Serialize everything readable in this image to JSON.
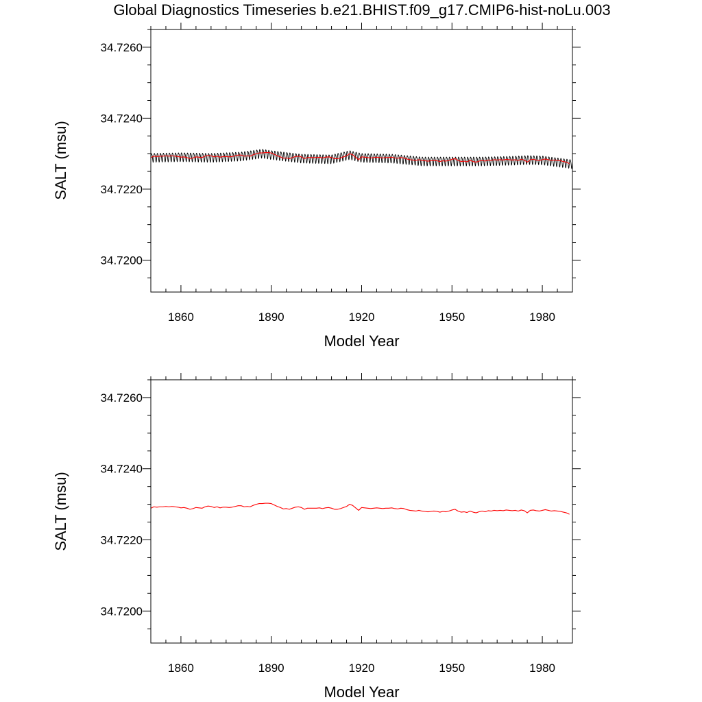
{
  "title": "Global Diagnostics Timeseries b.e21.BHIST.f09_g17.CMIP6-hist-noLu.003",
  "colors": {
    "monthly": "#000000",
    "annual": "#ff0000",
    "axes": "#000000"
  },
  "chart_data": [
    {
      "type": "line",
      "xlabel": "Model Year",
      "ylabel": "SALT (msu)",
      "xlim": [
        1850,
        1990
      ],
      "ylim": [
        34.7191,
        34.7265
      ],
      "xticks": [
        1860,
        1890,
        1920,
        1950,
        1980
      ],
      "xtick_labels": [
        "1860",
        "1890",
        "1920",
        "1950",
        "1980"
      ],
      "yticks": [
        34.72,
        34.722,
        34.724,
        34.726
      ],
      "ytick_labels": [
        "34.7200",
        "34.7220",
        "34.7240",
        "34.7260"
      ],
      "grid": false,
      "series": [
        {
          "key": "monthly",
          "kind": "monthly",
          "color": "#000000",
          "x_start": 1850,
          "x_end": 1990,
          "seasonal_amplitude": 0.00012,
          "anchors": {
            "x": [
              1850,
              1860,
              1870,
              1880,
              1887,
              1890,
              1900,
              1910,
              1916,
              1920,
              1930,
              1940,
              1950,
              1960,
              1970,
              1975,
              1980,
              1990
            ],
            "y": [
              34.7229,
              34.72292,
              34.7229,
              34.72294,
              34.72302,
              34.72298,
              34.72288,
              34.72286,
              34.72298,
              34.7229,
              34.72288,
              34.7228,
              34.7228,
              34.7228,
              34.72282,
              34.72284,
              34.72283,
              34.72272
            ]
          }
        },
        {
          "key": "annual",
          "kind": "annual",
          "color": "#ff0000",
          "x": [
            1850,
            1851,
            1852,
            1853,
            1854,
            1855,
            1856,
            1857,
            1858,
            1859,
            1860,
            1861,
            1862,
            1863,
            1864,
            1865,
            1866,
            1867,
            1868,
            1869,
            1870,
            1871,
            1872,
            1873,
            1874,
            1875,
            1876,
            1877,
            1878,
            1879,
            1880,
            1881,
            1882,
            1883,
            1884,
            1885,
            1886,
            1887,
            1888,
            1889,
            1890,
            1891,
            1892,
            1893,
            1894,
            1895,
            1896,
            1897,
            1898,
            1899,
            1900,
            1901,
            1902,
            1903,
            1904,
            1905,
            1906,
            1907,
            1908,
            1909,
            1910,
            1911,
            1912,
            1913,
            1914,
            1915,
            1916,
            1917,
            1918,
            1919,
            1920,
            1921,
            1922,
            1923,
            1924,
            1925,
            1926,
            1927,
            1928,
            1929,
            1930,
            1931,
            1932,
            1933,
            1934,
            1935,
            1936,
            1937,
            1938,
            1939,
            1940,
            1941,
            1942,
            1943,
            1944,
            1945,
            1946,
            1947,
            1948,
            1949,
            1950,
            1951,
            1952,
            1953,
            1954,
            1955,
            1956,
            1957,
            1958,
            1959,
            1960,
            1961,
            1962,
            1963,
            1964,
            1965,
            1966,
            1967,
            1968,
            1969,
            1970,
            1971,
            1972,
            1973,
            1974,
            1975,
            1976,
            1977,
            1978,
            1979,
            1980,
            1981,
            1982,
            1983,
            1984,
            1985,
            1986,
            1987,
            1988,
            1989
          ],
          "y": [
            34.72289,
            34.72293,
            34.72292,
            34.72293,
            34.72293,
            34.72294,
            34.72293,
            34.72294,
            34.72293,
            34.72292,
            34.7229,
            34.72291,
            34.72289,
            34.72286,
            34.72288,
            34.72291,
            34.7229,
            34.72289,
            34.72293,
            34.72295,
            34.72294,
            34.72291,
            34.72293,
            34.7229,
            34.72292,
            34.72292,
            34.72291,
            34.72292,
            34.72294,
            34.72296,
            34.72296,
            34.72293,
            34.72294,
            34.72293,
            34.72297,
            34.723,
            34.72302,
            34.72302,
            34.72303,
            34.72303,
            34.72302,
            34.72298,
            34.72294,
            34.72291,
            34.72287,
            34.72288,
            34.72286,
            34.72289,
            34.72292,
            34.72293,
            34.72291,
            34.72286,
            34.72289,
            34.72289,
            34.72289,
            34.72289,
            34.7229,
            34.72288,
            34.7229,
            34.72291,
            34.72289,
            34.72286,
            34.72286,
            34.72288,
            34.72291,
            34.72294,
            34.723,
            34.72297,
            34.7229,
            34.72283,
            34.72291,
            34.7229,
            34.72289,
            34.72288,
            34.72289,
            34.7229,
            34.72289,
            34.72288,
            34.72289,
            34.72289,
            34.7229,
            34.72288,
            34.72287,
            34.72289,
            34.72288,
            34.72285,
            34.72283,
            34.72282,
            34.72281,
            34.72283,
            34.72281,
            34.7228,
            34.72279,
            34.7228,
            34.72281,
            34.7228,
            34.72278,
            34.7228,
            34.72279,
            34.72281,
            34.72284,
            34.72286,
            34.72281,
            34.72278,
            34.72279,
            34.72277,
            34.72281,
            34.72278,
            34.72276,
            34.72279,
            34.72281,
            34.72279,
            34.72282,
            34.72281,
            34.72283,
            34.72282,
            34.72283,
            34.72282,
            34.72284,
            34.72283,
            34.72282,
            34.72283,
            34.72281,
            34.72284,
            34.72282,
            34.72276,
            34.72283,
            34.72284,
            34.72282,
            34.72281,
            34.72283,
            34.72285,
            34.72283,
            34.72281,
            34.72282,
            34.72281,
            34.7228,
            34.72278,
            34.72276,
            34.72272
          ]
        }
      ]
    },
    {
      "type": "line",
      "xlabel": "Model Year",
      "ylabel": "SALT (msu)",
      "xlim": [
        1850,
        1990
      ],
      "ylim": [
        34.7191,
        34.7265
      ],
      "xticks": [
        1860,
        1890,
        1920,
        1950,
        1980
      ],
      "xtick_labels": [
        "1860",
        "1890",
        "1920",
        "1950",
        "1980"
      ],
      "yticks": [
        34.72,
        34.722,
        34.724,
        34.726
      ],
      "ytick_labels": [
        "34.7200",
        "34.7220",
        "34.7240",
        "34.7260"
      ],
      "grid": false,
      "series": [
        {
          "key": "annual",
          "kind": "annual",
          "color": "#ff0000",
          "x": [
            1850,
            1851,
            1852,
            1853,
            1854,
            1855,
            1856,
            1857,
            1858,
            1859,
            1860,
            1861,
            1862,
            1863,
            1864,
            1865,
            1866,
            1867,
            1868,
            1869,
            1870,
            1871,
            1872,
            1873,
            1874,
            1875,
            1876,
            1877,
            1878,
            1879,
            1880,
            1881,
            1882,
            1883,
            1884,
            1885,
            1886,
            1887,
            1888,
            1889,
            1890,
            1891,
            1892,
            1893,
            1894,
            1895,
            1896,
            1897,
            1898,
            1899,
            1900,
            1901,
            1902,
            1903,
            1904,
            1905,
            1906,
            1907,
            1908,
            1909,
            1910,
            1911,
            1912,
            1913,
            1914,
            1915,
            1916,
            1917,
            1918,
            1919,
            1920,
            1921,
            1922,
            1923,
            1924,
            1925,
            1926,
            1927,
            1928,
            1929,
            1930,
            1931,
            1932,
            1933,
            1934,
            1935,
            1936,
            1937,
            1938,
            1939,
            1940,
            1941,
            1942,
            1943,
            1944,
            1945,
            1946,
            1947,
            1948,
            1949,
            1950,
            1951,
            1952,
            1953,
            1954,
            1955,
            1956,
            1957,
            1958,
            1959,
            1960,
            1961,
            1962,
            1963,
            1964,
            1965,
            1966,
            1967,
            1968,
            1969,
            1970,
            1971,
            1972,
            1973,
            1974,
            1975,
            1976,
            1977,
            1978,
            1979,
            1980,
            1981,
            1982,
            1983,
            1984,
            1985,
            1986,
            1987,
            1988,
            1989
          ],
          "y": [
            34.72289,
            34.72293,
            34.72292,
            34.72293,
            34.72293,
            34.72294,
            34.72293,
            34.72294,
            34.72293,
            34.72292,
            34.7229,
            34.72291,
            34.72289,
            34.72286,
            34.72288,
            34.72291,
            34.7229,
            34.72289,
            34.72293,
            34.72295,
            34.72294,
            34.72291,
            34.72293,
            34.7229,
            34.72292,
            34.72292,
            34.72291,
            34.72292,
            34.72294,
            34.72296,
            34.72296,
            34.72293,
            34.72294,
            34.72293,
            34.72297,
            34.723,
            34.72302,
            34.72302,
            34.72303,
            34.72303,
            34.72302,
            34.72298,
            34.72294,
            34.72291,
            34.72287,
            34.72288,
            34.72286,
            34.72289,
            34.72292,
            34.72293,
            34.72291,
            34.72286,
            34.72289,
            34.72289,
            34.72289,
            34.72289,
            34.7229,
            34.72288,
            34.7229,
            34.72291,
            34.72289,
            34.72286,
            34.72286,
            34.72288,
            34.72291,
            34.72294,
            34.723,
            34.72297,
            34.7229,
            34.72283,
            34.72291,
            34.7229,
            34.72289,
            34.72288,
            34.72289,
            34.7229,
            34.72289,
            34.72288,
            34.72289,
            34.72289,
            34.7229,
            34.72288,
            34.72287,
            34.72289,
            34.72288,
            34.72285,
            34.72283,
            34.72282,
            34.72281,
            34.72283,
            34.72281,
            34.7228,
            34.72279,
            34.7228,
            34.72281,
            34.7228,
            34.72278,
            34.7228,
            34.72279,
            34.72281,
            34.72284,
            34.72286,
            34.72281,
            34.72278,
            34.72279,
            34.72277,
            34.72281,
            34.72278,
            34.72276,
            34.72279,
            34.72281,
            34.72279,
            34.72282,
            34.72281,
            34.72283,
            34.72282,
            34.72283,
            34.72282,
            34.72284,
            34.72283,
            34.72282,
            34.72283,
            34.72281,
            34.72284,
            34.72282,
            34.72276,
            34.72283,
            34.72284,
            34.72282,
            34.72281,
            34.72283,
            34.72285,
            34.72283,
            34.72281,
            34.72282,
            34.72281,
            34.7228,
            34.72278,
            34.72276,
            34.72272
          ]
        }
      ]
    }
  ]
}
